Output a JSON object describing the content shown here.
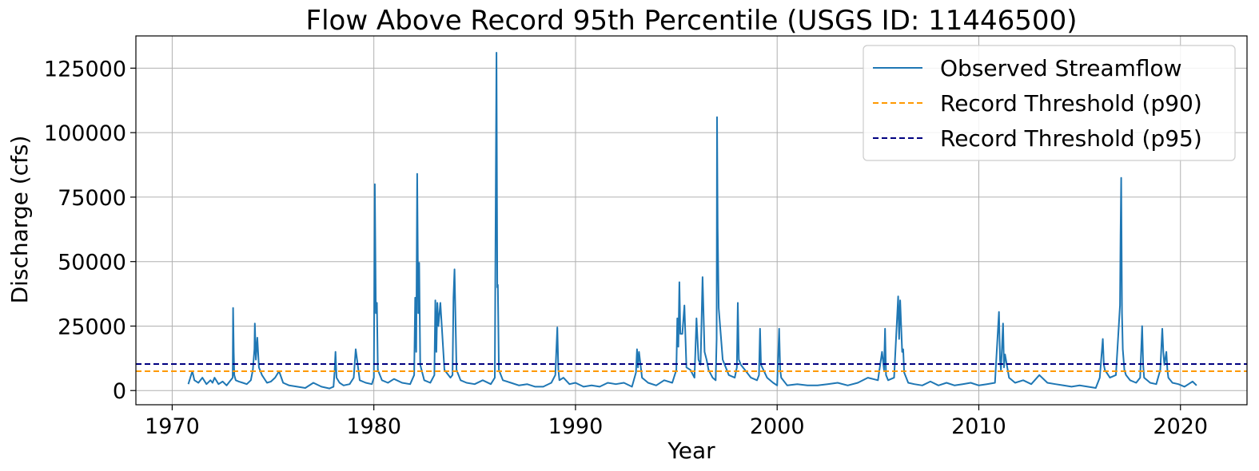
{
  "chart_data": {
    "type": "line",
    "title": "Flow Above Record 95th Percentile (USGS ID: 11446500)",
    "xlabel": "Year",
    "ylabel": "Discharge (cfs)",
    "xlim": [
      1968.2,
      2023.3
    ],
    "ylim": [
      -5500,
      137500
    ],
    "xticks": [
      1970,
      1980,
      1990,
      2000,
      2010,
      2020
    ],
    "yticks": [
      0,
      25000,
      50000,
      75000,
      100000,
      125000
    ],
    "grid": true,
    "legend_position": "top-right",
    "colors": {
      "observed": "#1f77b4",
      "p90": "#ff9900",
      "p95": "#000080"
    },
    "series": [
      {
        "name": "Observed Streamflow",
        "style": "solid",
        "x": [
          1970.8,
          1971.0,
          1971.1,
          1971.3,
          1971.5,
          1971.7,
          1971.9,
          1972.0,
          1972.1,
          1972.3,
          1972.5,
          1972.7,
          1972.9,
          1973.0,
          1973.02,
          1973.05,
          1973.08,
          1973.15,
          1973.3,
          1973.5,
          1973.7,
          1973.9,
          1974.0,
          1974.08,
          1974.1,
          1974.15,
          1974.22,
          1974.3,
          1974.45,
          1974.7,
          1974.9,
          1975.1,
          1975.3,
          1975.5,
          1975.8,
          1976.2,
          1976.6,
          1977.0,
          1977.4,
          1977.8,
          1978.0,
          1978.05,
          1978.1,
          1978.15,
          1978.3,
          1978.5,
          1978.8,
          1979.0,
          1979.1,
          1979.3,
          1979.6,
          1979.9,
          1980.0,
          1980.05,
          1980.1,
          1980.15,
          1980.2,
          1980.4,
          1980.7,
          1981.0,
          1981.4,
          1981.8,
          1982.0,
          1982.05,
          1982.1,
          1982.15,
          1982.2,
          1982.25,
          1982.3,
          1982.5,
          1982.8,
          1983.0,
          1983.05,
          1983.1,
          1983.15,
          1983.2,
          1983.3,
          1983.5,
          1983.8,
          1983.9,
          1983.95,
          1984.0,
          1984.1,
          1984.3,
          1984.6,
          1985.0,
          1985.4,
          1985.8,
          1986.0,
          1986.08,
          1986.12,
          1986.15,
          1986.2,
          1986.4,
          1986.8,
          1987.2,
          1987.6,
          1988.0,
          1988.4,
          1988.8,
          1989.0,
          1989.1,
          1989.15,
          1989.2,
          1989.4,
          1989.7,
          1990.0,
          1990.4,
          1990.8,
          1991.2,
          1991.6,
          1992.0,
          1992.4,
          1992.8,
          1993.0,
          1993.05,
          1993.1,
          1993.15,
          1993.3,
          1993.6,
          1994.0,
          1994.4,
          1994.8,
          1995.0,
          1995.05,
          1995.1,
          1995.15,
          1995.2,
          1995.3,
          1995.4,
          1995.5,
          1995.7,
          1995.9,
          1996.0,
          1996.1,
          1996.2,
          1996.3,
          1996.4,
          1996.5,
          1996.6,
          1996.8,
          1996.95,
          1997.0,
          1997.02,
          1997.05,
          1997.1,
          1997.3,
          1997.6,
          1997.9,
          1998.0,
          1998.05,
          1998.1,
          1998.2,
          1998.4,
          1998.7,
          1999.0,
          1999.1,
          1999.15,
          1999.2,
          1999.5,
          1999.8,
          2000.0,
          2000.1,
          2000.15,
          2000.2,
          2000.5,
          2001.0,
          2001.5,
          2002.0,
          2002.5,
          2003.0,
          2003.5,
          2004.0,
          2004.5,
          2005.0,
          2005.2,
          2005.3,
          2005.35,
          2005.4,
          2005.5,
          2005.8,
          2006.0,
          2006.05,
          2006.1,
          2006.2,
          2006.25,
          2006.3,
          2006.5,
          2006.8,
          2007.2,
          2007.6,
          2008.0,
          2008.4,
          2008.8,
          2009.2,
          2009.6,
          2010.0,
          2010.4,
          2010.8,
          2011.0,
          2011.05,
          2011.1,
          2011.2,
          2011.25,
          2011.3,
          2011.5,
          2011.8,
          2012.2,
          2012.6,
          2013.0,
          2013.4,
          2013.8,
          2014.2,
          2014.6,
          2015.0,
          2015.4,
          2015.8,
          2016.0,
          2016.15,
          2016.2,
          2016.25,
          2016.5,
          2016.8,
          2017.0,
          2017.03,
          2017.06,
          2017.1,
          2017.14,
          2017.18,
          2017.22,
          2017.3,
          2017.5,
          2017.8,
          2018.0,
          2018.1,
          2018.15,
          2018.2,
          2018.5,
          2018.8,
          2019.0,
          2019.1,
          2019.15,
          2019.2,
          2019.3,
          2019.35,
          2019.4,
          2019.6,
          2019.9,
          2020.2,
          2020.4,
          2020.6,
          2020.8
        ],
        "y": [
          2500,
          7500,
          4000,
          3000,
          5000,
          2500,
          4000,
          3000,
          5000,
          2500,
          3500,
          2000,
          4000,
          5000,
          32000,
          15000,
          6000,
          4000,
          3500,
          3000,
          2500,
          4000,
          8000,
          16000,
          26000,
          12000,
          20500,
          9000,
          6000,
          3000,
          3500,
          5000,
          7500,
          3000,
          2000,
          1500,
          1000,
          3000,
          1500,
          800,
          1500,
          7000,
          15000,
          5000,
          3000,
          2000,
          2500,
          5000,
          16000,
          4000,
          3000,
          2500,
          5000,
          80000,
          30000,
          34000,
          8000,
          4000,
          3000,
          4500,
          3000,
          2500,
          6000,
          36000,
          15000,
          84000,
          30000,
          49500,
          10000,
          4000,
          3000,
          6000,
          35000,
          15000,
          34000,
          25000,
          34000,
          8000,
          5000,
          6000,
          36000,
          47000,
          8000,
          4000,
          3000,
          2500,
          4000,
          2500,
          5000,
          131000,
          40000,
          41000,
          8000,
          4000,
          3000,
          2000,
          2500,
          1500,
          1500,
          3000,
          6000,
          24500,
          8000,
          4000,
          5000,
          2500,
          3000,
          1500,
          2000,
          1500,
          3000,
          2500,
          3000,
          1500,
          7000,
          16000,
          9000,
          15000,
          5000,
          3000,
          2000,
          4000,
          3000,
          8000,
          28000,
          17000,
          42000,
          22000,
          22000,
          33000,
          9000,
          8000,
          5000,
          28000,
          12000,
          10000,
          44000,
          15000,
          12000,
          8000,
          5000,
          4000,
          20000,
          106000,
          63000,
          32000,
          12000,
          6000,
          5000,
          9000,
          34000,
          12000,
          10000,
          8000,
          5000,
          4000,
          6000,
          24000,
          10000,
          5000,
          3000,
          2000,
          24000,
          8000,
          5000,
          2000,
          2500,
          2000,
          2000,
          2500,
          3000,
          2000,
          3000,
          5000,
          4000,
          15000,
          8000,
          24000,
          6000,
          4000,
          5000,
          36500,
          20000,
          35000,
          15000,
          16000,
          7000,
          3000,
          2500,
          2000,
          3500,
          2000,
          3000,
          2000,
          2500,
          3000,
          2000,
          2500,
          3000,
          30500,
          12000,
          8000,
          26000,
          9000,
          14000,
          5000,
          3000,
          4000,
          2500,
          6000,
          3000,
          2500,
          2000,
          1500,
          2000,
          1500,
          1000,
          5000,
          20000,
          10000,
          8000,
          5000,
          6000,
          33000,
          60000,
          82500,
          30000,
          16000,
          12000,
          8000,
          6000,
          4000,
          3000,
          5000,
          25000,
          10000,
          5000,
          3000,
          2500,
          8000,
          24000,
          15000,
          10000,
          15000,
          8000,
          5000,
          3000,
          2500,
          1500,
          2500,
          3500,
          2000
        ]
      },
      {
        "name": "Record Threshold (p90)",
        "style": "dashed",
        "y": 7500
      },
      {
        "name": "Record Threshold (p95)",
        "style": "dashed",
        "y": 10300
      }
    ]
  }
}
